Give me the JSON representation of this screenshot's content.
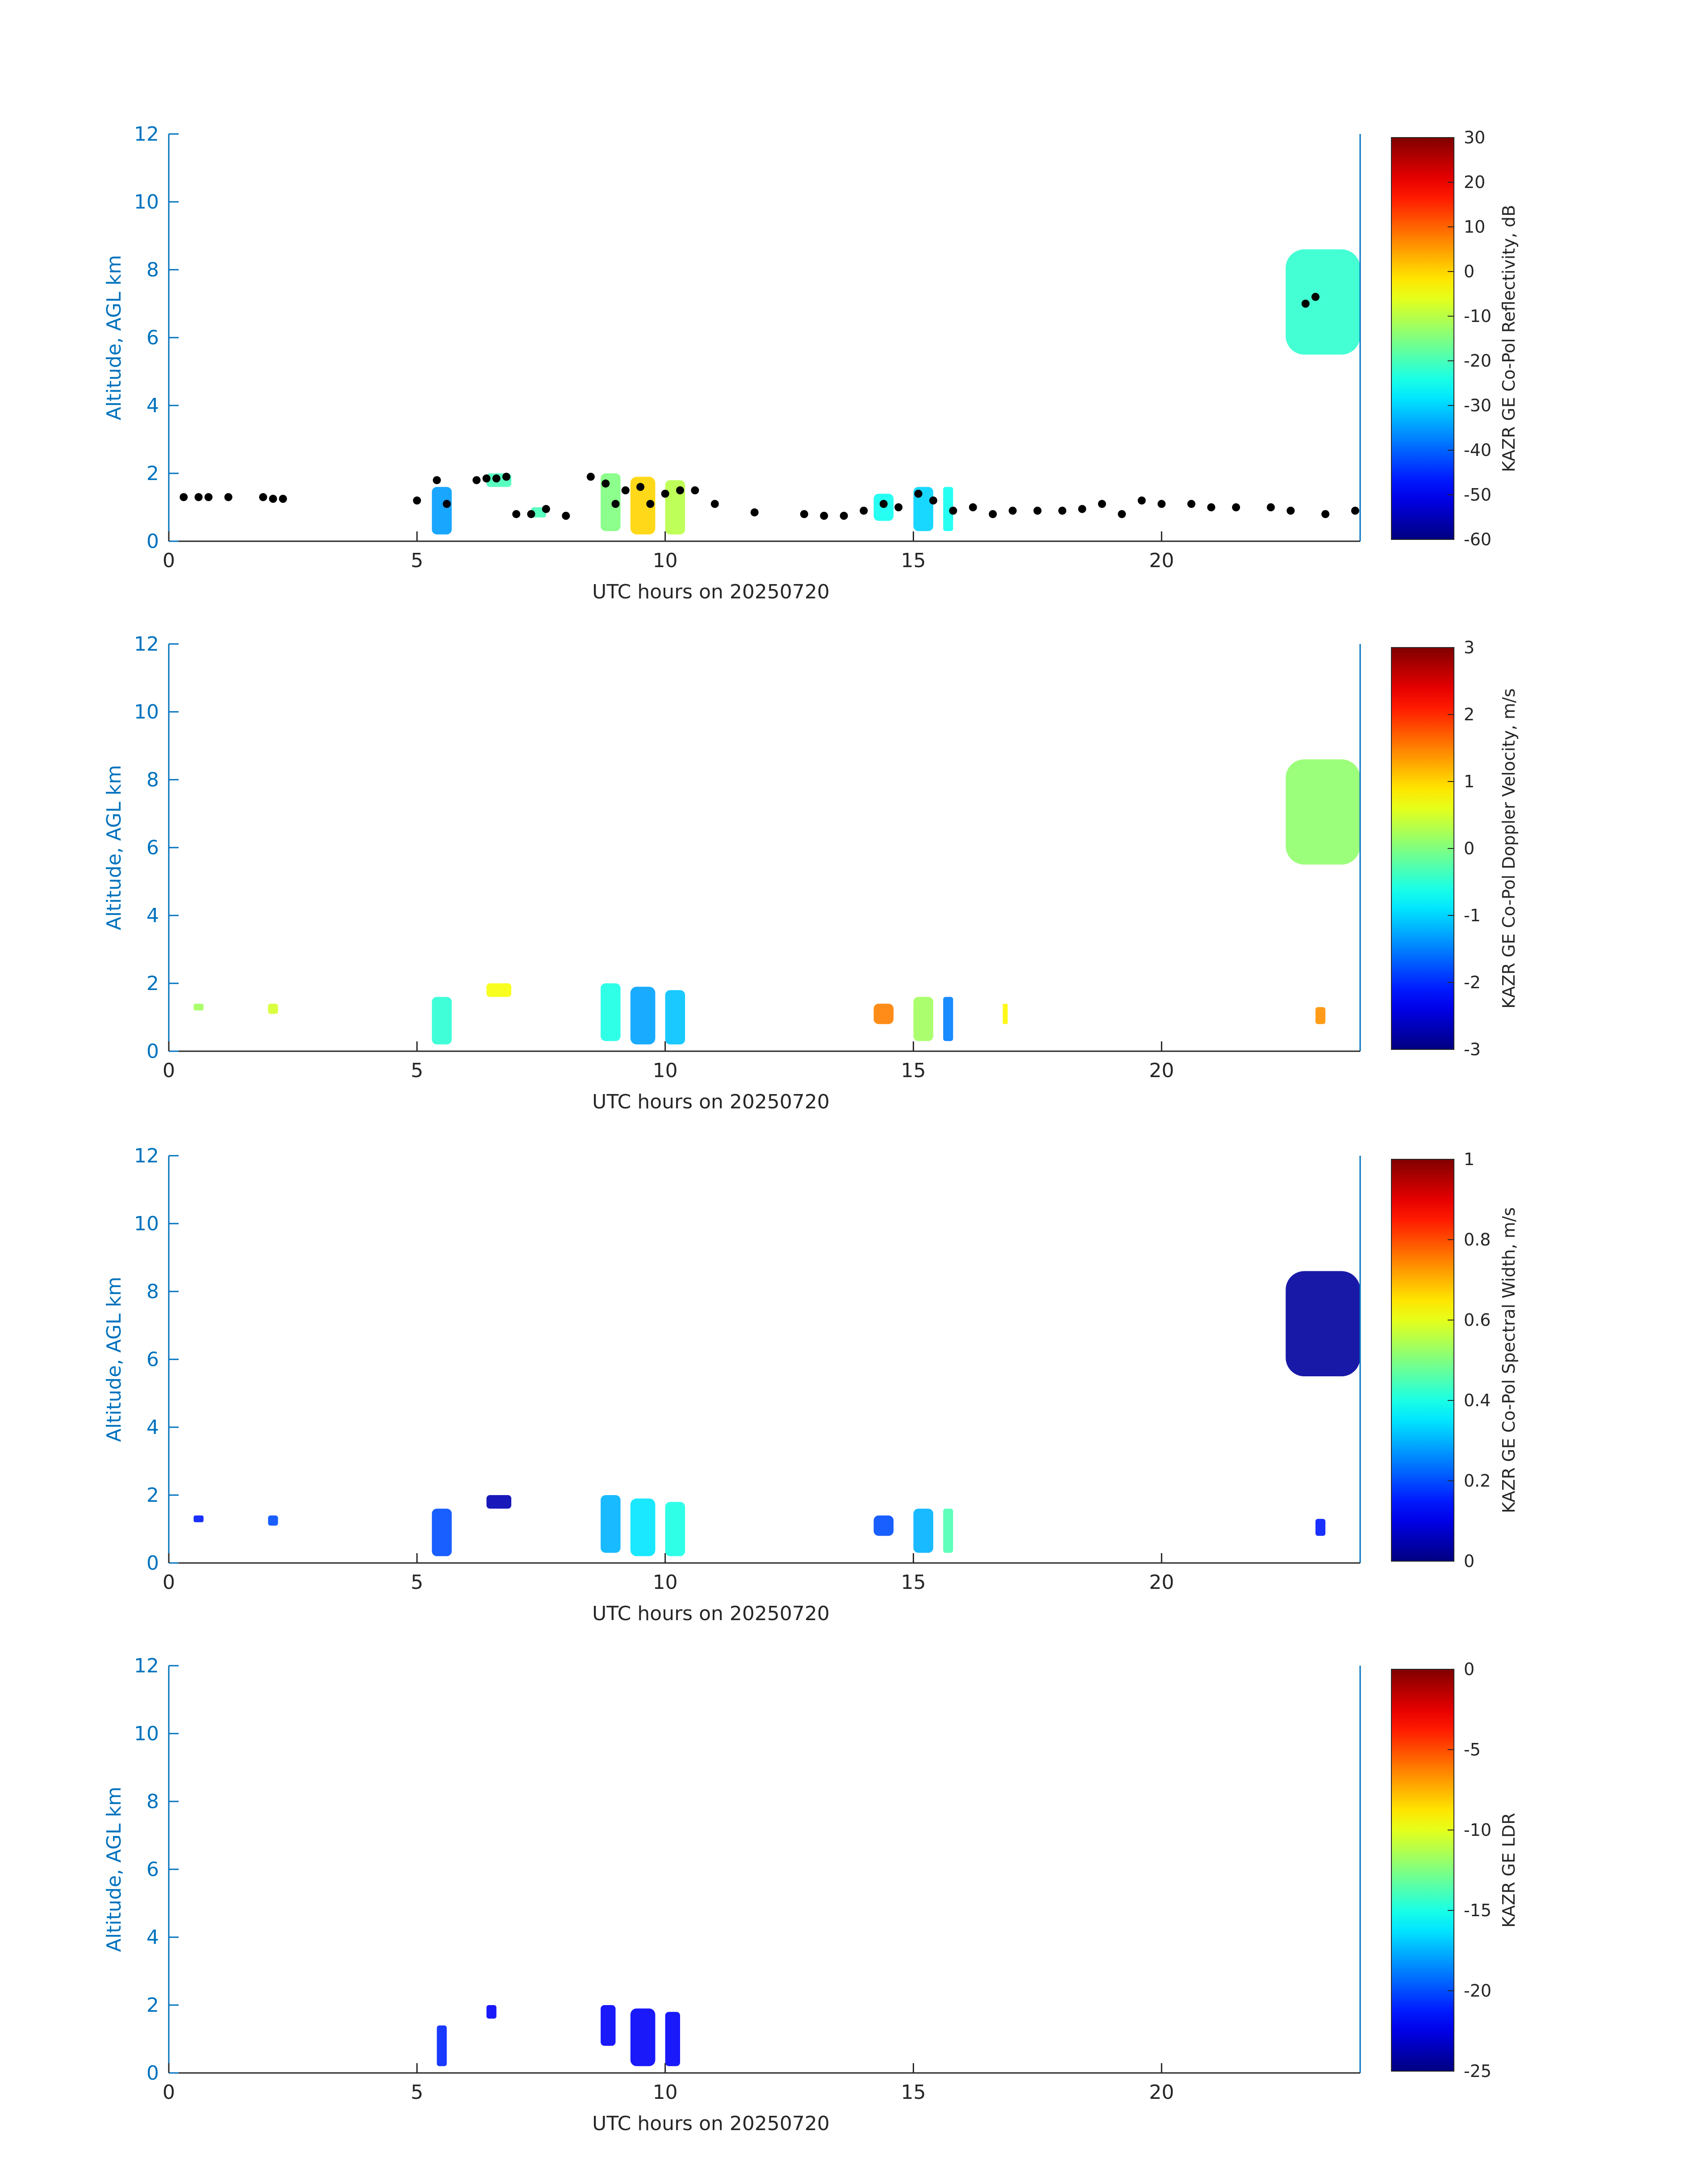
{
  "colors": {
    "axis": "#0072BD",
    "text": "#262626",
    "black_markers": "#000000",
    "colormap": "jet"
  },
  "chart_data": [
    {
      "type": "heatmap",
      "title": "",
      "xlabel": "UTC hours on 20250720",
      "ylabel": "Altitude, AGL km",
      "xlim": [
        0,
        24
      ],
      "ylim": [
        0,
        12
      ],
      "xticks": [
        "0",
        "5",
        "10",
        "15",
        "20"
      ],
      "yticks": [
        "0",
        "2",
        "4",
        "6",
        "8",
        "10",
        "12"
      ],
      "colorbar": {
        "label": "KAZR GE Co-Pol Reflectivity, dB",
        "range": [
          -60,
          30
        ],
        "ticks": [
          "30",
          "20",
          "10",
          "0",
          "-10",
          "-20",
          "-30",
          "-40",
          "-50",
          "-60"
        ]
      },
      "grid": false,
      "cloud_regions": [
        {
          "x": [
            5.3,
            5.7
          ],
          "y": [
            0.2,
            1.6
          ],
          "value": -35
        },
        {
          "x": [
            6.4,
            6.9
          ],
          "y": [
            1.6,
            2.0
          ],
          "value": -20
        },
        {
          "x": [
            7.3,
            7.6
          ],
          "y": [
            0.7,
            1.0
          ],
          "value": -20
        },
        {
          "x": [
            8.7,
            9.1
          ],
          "y": [
            0.3,
            2.0
          ],
          "value": -15
        },
        {
          "x": [
            9.3,
            9.8
          ],
          "y": [
            0.2,
            1.9
          ],
          "value": 0
        },
        {
          "x": [
            10.0,
            10.4
          ],
          "y": [
            0.2,
            1.8
          ],
          "value": -10
        },
        {
          "x": [
            14.2,
            14.6
          ],
          "y": [
            0.6,
            1.4
          ],
          "value": -25
        },
        {
          "x": [
            15.0,
            15.4
          ],
          "y": [
            0.3,
            1.6
          ],
          "value": -30
        },
        {
          "x": [
            15.6,
            15.8
          ],
          "y": [
            0.3,
            1.6
          ],
          "value": -25
        },
        {
          "x": [
            22.5,
            24.0
          ],
          "y": [
            5.5,
            8.6
          ],
          "value": -22
        }
      ],
      "cloud_base_markers": [
        {
          "x": 0.3,
          "y": 1.3
        },
        {
          "x": 0.6,
          "y": 1.3
        },
        {
          "x": 0.8,
          "y": 1.3
        },
        {
          "x": 1.2,
          "y": 1.3
        },
        {
          "x": 1.9,
          "y": 1.3
        },
        {
          "x": 2.1,
          "y": 1.25
        },
        {
          "x": 2.3,
          "y": 1.25
        },
        {
          "x": 5.0,
          "y": 1.2
        },
        {
          "x": 5.4,
          "y": 1.8
        },
        {
          "x": 5.6,
          "y": 1.1
        },
        {
          "x": 6.2,
          "y": 1.8
        },
        {
          "x": 6.4,
          "y": 1.85
        },
        {
          "x": 6.6,
          "y": 1.85
        },
        {
          "x": 6.8,
          "y": 1.9
        },
        {
          "x": 7.0,
          "y": 0.8
        },
        {
          "x": 7.3,
          "y": 0.8
        },
        {
          "x": 7.6,
          "y": 0.95
        },
        {
          "x": 8.0,
          "y": 0.75
        },
        {
          "x": 8.5,
          "y": 1.9
        },
        {
          "x": 8.8,
          "y": 1.7
        },
        {
          "x": 9.0,
          "y": 1.1
        },
        {
          "x": 9.2,
          "y": 1.5
        },
        {
          "x": 9.5,
          "y": 1.6
        },
        {
          "x": 9.7,
          "y": 1.1
        },
        {
          "x": 10.0,
          "y": 1.4
        },
        {
          "x": 10.3,
          "y": 1.5
        },
        {
          "x": 10.6,
          "y": 1.5
        },
        {
          "x": 11.0,
          "y": 1.1
        },
        {
          "x": 11.8,
          "y": 0.85
        },
        {
          "x": 12.8,
          "y": 0.8
        },
        {
          "x": 13.2,
          "y": 0.75
        },
        {
          "x": 13.6,
          "y": 0.75
        },
        {
          "x": 14.0,
          "y": 0.9
        },
        {
          "x": 14.4,
          "y": 1.1
        },
        {
          "x": 14.7,
          "y": 1.0
        },
        {
          "x": 15.1,
          "y": 1.4
        },
        {
          "x": 15.4,
          "y": 1.2
        },
        {
          "x": 15.8,
          "y": 0.9
        },
        {
          "x": 16.2,
          "y": 1.0
        },
        {
          "x": 16.6,
          "y": 0.8
        },
        {
          "x": 17.0,
          "y": 0.9
        },
        {
          "x": 17.5,
          "y": 0.9
        },
        {
          "x": 18.0,
          "y": 0.9
        },
        {
          "x": 18.4,
          "y": 0.95
        },
        {
          "x": 18.8,
          "y": 1.1
        },
        {
          "x": 19.2,
          "y": 0.8
        },
        {
          "x": 19.6,
          "y": 1.2
        },
        {
          "x": 20.0,
          "y": 1.1
        },
        {
          "x": 20.6,
          "y": 1.1
        },
        {
          "x": 21.0,
          "y": 1.0
        },
        {
          "x": 21.5,
          "y": 1.0
        },
        {
          "x": 22.2,
          "y": 1.0
        },
        {
          "x": 22.6,
          "y": 0.9
        },
        {
          "x": 22.9,
          "y": 7.0
        },
        {
          "x": 23.1,
          "y": 7.2
        },
        {
          "x": 23.3,
          "y": 0.8
        },
        {
          "x": 23.9,
          "y": 0.9
        }
      ]
    },
    {
      "type": "heatmap",
      "title": "",
      "xlabel": "UTC hours on 20250720",
      "ylabel": "Altitude, AGL km",
      "xlim": [
        0,
        24
      ],
      "ylim": [
        0,
        12
      ],
      "xticks": [
        "0",
        "5",
        "10",
        "15",
        "20"
      ],
      "yticks": [
        "0",
        "2",
        "4",
        "6",
        "8",
        "10",
        "12"
      ],
      "colorbar": {
        "label": "KAZR GE Co-Pol Doppler Velocity, m/s",
        "range": [
          -3,
          3
        ],
        "ticks": [
          "3",
          "2",
          "1",
          "0",
          "-1",
          "-2",
          "-3"
        ]
      },
      "grid": false,
      "cloud_regions": [
        {
          "x": [
            0.5,
            0.7
          ],
          "y": [
            1.2,
            1.4
          ],
          "value": 0.2
        },
        {
          "x": [
            2.0,
            2.2
          ],
          "y": [
            1.1,
            1.4
          ],
          "value": 0.5
        },
        {
          "x": [
            5.3,
            5.7
          ],
          "y": [
            0.2,
            1.6
          ],
          "value": -0.5
        },
        {
          "x": [
            6.4,
            6.9
          ],
          "y": [
            1.6,
            2.0
          ],
          "value": 0.7
        },
        {
          "x": [
            8.7,
            9.1
          ],
          "y": [
            0.3,
            2.0
          ],
          "value": -0.6
        },
        {
          "x": [
            9.3,
            9.8
          ],
          "y": [
            0.2,
            1.9
          ],
          "value": -1.3
        },
        {
          "x": [
            10.0,
            10.4
          ],
          "y": [
            0.2,
            1.8
          ],
          "value": -1.1
        },
        {
          "x": [
            14.2,
            14.6
          ],
          "y": [
            0.8,
            1.4
          ],
          "value": 1.5
        },
        {
          "x": [
            15.0,
            15.4
          ],
          "y": [
            0.3,
            1.6
          ],
          "value": 0.2
        },
        {
          "x": [
            15.6,
            15.8
          ],
          "y": [
            0.3,
            1.6
          ],
          "value": -1.5
        },
        {
          "x": [
            16.8,
            16.9
          ],
          "y": [
            0.8,
            1.4
          ],
          "value": 0.8
        },
        {
          "x": [
            23.1,
            23.3
          ],
          "y": [
            0.8,
            1.3
          ],
          "value": 1.4
        },
        {
          "x": [
            22.5,
            24.0
          ],
          "y": [
            5.5,
            8.6
          ],
          "value": 0.1
        }
      ]
    },
    {
      "type": "heatmap",
      "title": "",
      "xlabel": "UTC hours on 20250720",
      "ylabel": "Altitude, AGL km",
      "xlim": [
        0,
        24
      ],
      "ylim": [
        0,
        12
      ],
      "xticks": [
        "0",
        "5",
        "10",
        "15",
        "20"
      ],
      "yticks": [
        "0",
        "2",
        "4",
        "6",
        "8",
        "10",
        "12"
      ],
      "colorbar": {
        "label": "KAZR GE Co-Pol Spectral Width, m/s",
        "range": [
          0,
          1
        ],
        "ticks": [
          "1",
          "0.8",
          "0.6",
          "0.4",
          "0.2",
          "0"
        ]
      },
      "grid": false,
      "cloud_regions": [
        {
          "x": [
            0.5,
            0.7
          ],
          "y": [
            1.2,
            1.4
          ],
          "value": 0.15
        },
        {
          "x": [
            2.0,
            2.2
          ],
          "y": [
            1.1,
            1.4
          ],
          "value": 0.2
        },
        {
          "x": [
            5.3,
            5.7
          ],
          "y": [
            0.2,
            1.6
          ],
          "value": 0.2
        },
        {
          "x": [
            6.4,
            6.9
          ],
          "y": [
            1.6,
            2.0
          ],
          "value": 0.05
        },
        {
          "x": [
            8.7,
            9.1
          ],
          "y": [
            0.3,
            2.0
          ],
          "value": 0.3
        },
        {
          "x": [
            9.3,
            9.8
          ],
          "y": [
            0.2,
            1.9
          ],
          "value": 0.35
        },
        {
          "x": [
            10.0,
            10.4
          ],
          "y": [
            0.2,
            1.8
          ],
          "value": 0.4
        },
        {
          "x": [
            14.2,
            14.6
          ],
          "y": [
            0.8,
            1.4
          ],
          "value": 0.2
        },
        {
          "x": [
            15.0,
            15.4
          ],
          "y": [
            0.3,
            1.6
          ],
          "value": 0.3
        },
        {
          "x": [
            15.6,
            15.8
          ],
          "y": [
            0.3,
            1.6
          ],
          "value": 0.45
        },
        {
          "x": [
            23.1,
            23.3
          ],
          "y": [
            0.8,
            1.3
          ],
          "value": 0.15
        },
        {
          "x": [
            22.5,
            24.0
          ],
          "y": [
            5.5,
            8.6
          ],
          "value": 0.03
        }
      ]
    },
    {
      "type": "heatmap",
      "title": "",
      "xlabel": "UTC hours on 20250720",
      "ylabel": "Altitude, AGL km",
      "xlim": [
        0,
        24
      ],
      "ylim": [
        0,
        12
      ],
      "xticks": [
        "0",
        "5",
        "10",
        "15",
        "20"
      ],
      "yticks": [
        "0",
        "2",
        "4",
        "6",
        "8",
        "10",
        "12"
      ],
      "colorbar": {
        "label": "KAZR GE LDR",
        "range": [
          -25,
          0
        ],
        "ticks": [
          "0",
          "-5",
          "-10",
          "-15",
          "-20",
          "-25"
        ]
      },
      "grid": false,
      "cloud_regions": [
        {
          "x": [
            5.4,
            5.6
          ],
          "y": [
            0.2,
            1.4
          ],
          "value": -21
        },
        {
          "x": [
            6.4,
            6.6
          ],
          "y": [
            1.6,
            2.0
          ],
          "value": -22
        },
        {
          "x": [
            8.7,
            9.0
          ],
          "y": [
            0.8,
            2.0
          ],
          "value": -22
        },
        {
          "x": [
            9.3,
            9.8
          ],
          "y": [
            0.2,
            1.9
          ],
          "value": -22
        },
        {
          "x": [
            10.0,
            10.3
          ],
          "y": [
            0.2,
            1.8
          ],
          "value": -22
        }
      ]
    }
  ]
}
